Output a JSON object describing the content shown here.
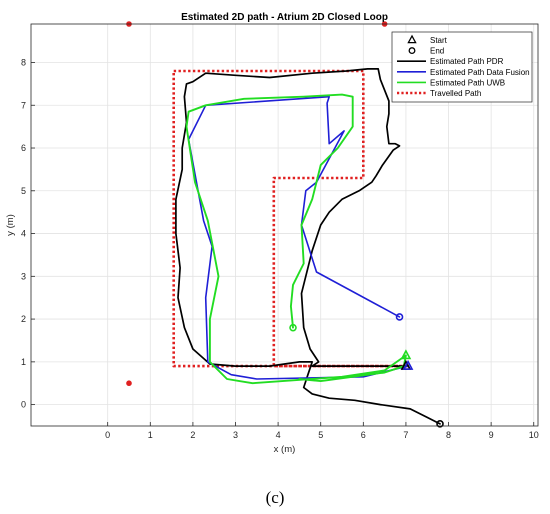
{
  "chart_data": {
    "type": "line",
    "title": "Estimated 2D path - Atrium 2D Closed Loop",
    "xlabel": "x (m)",
    "ylabel": "y (m)",
    "xlim": [
      -1.8,
      10.1
    ],
    "ylim": [
      -0.5,
      8.9
    ],
    "xticks": [
      0,
      1,
      2,
      3,
      4,
      5,
      6,
      7,
      8,
      9,
      10
    ],
    "yticks": [
      0,
      1,
      2,
      3,
      4,
      5,
      6,
      7,
      8
    ],
    "grid": true,
    "legend_position": "top-right",
    "legend": [
      {
        "label": "Start",
        "marker": "triangle",
        "color": "#000000"
      },
      {
        "label": "End",
        "marker": "circle",
        "color": "#000000"
      },
      {
        "label": "Estimated Path PDR",
        "color": "#000000",
        "style": "solid"
      },
      {
        "label": "Estimated Path Data Fusion",
        "color": "#1f1fd6",
        "style": "solid"
      },
      {
        "label": "Estimated Path UWB",
        "color": "#22dd22",
        "style": "solid"
      },
      {
        "label": "Travelled Path",
        "color": "#e02020",
        "style": "dotted"
      }
    ],
    "series": [
      {
        "name": "Travelled Path",
        "color": "#e02020",
        "style": "dotted",
        "x": [
          1.55,
          6.0,
          6.0,
          3.9,
          3.9,
          7.05,
          1.55,
          1.55
        ],
        "y": [
          7.8,
          7.8,
          5.3,
          5.3,
          0.9,
          0.9,
          0.9,
          7.8
        ]
      },
      {
        "name": "Estimated Path PDR",
        "color": "#000000",
        "style": "solid",
        "x": [
          7.8,
          7.5,
          7.1,
          6.4,
          5.8,
          5.2,
          4.8,
          4.6,
          4.7,
          4.8,
          4.5,
          3.8,
          3.0,
          2.4,
          2.0,
          1.8,
          1.65,
          1.7,
          1.6,
          1.6,
          1.75,
          1.75,
          1.85,
          1.8,
          1.85,
          2.0,
          2.3,
          3.0,
          3.8,
          4.8,
          5.6,
          6.1,
          6.35,
          6.4,
          6.6,
          6.6,
          6.55,
          6.6,
          6.75,
          6.85,
          6.7,
          6.45,
          6.3,
          6.2,
          5.9,
          5.5,
          5.2,
          5.0,
          4.8,
          4.55,
          4.6,
          4.75,
          4.95,
          4.8,
          7.0
        ],
        "y": [
          -0.45,
          -0.3,
          -0.1,
          0.0,
          0.1,
          0.15,
          0.25,
          0.4,
          0.7,
          1.0,
          1.0,
          0.9,
          0.9,
          0.95,
          1.3,
          1.8,
          2.5,
          3.2,
          4.0,
          4.8,
          5.5,
          6.0,
          6.6,
          7.2,
          7.5,
          7.55,
          7.75,
          7.7,
          7.65,
          7.75,
          7.8,
          7.85,
          7.85,
          7.6,
          7.1,
          6.8,
          6.5,
          6.1,
          6.1,
          6.05,
          5.95,
          5.6,
          5.35,
          5.2,
          5.0,
          4.8,
          4.5,
          4.2,
          3.6,
          2.6,
          1.8,
          1.3,
          1.0,
          0.9,
          0.9
        ]
      },
      {
        "name": "Estimated Path Data Fusion",
        "color": "#1f1fd6",
        "style": "solid",
        "x": [
          6.85,
          4.9,
          4.55,
          4.65,
          4.9,
          5.55,
          5.2,
          5.15,
          5.2,
          2.3,
          1.9,
          2.25,
          2.45,
          2.3,
          2.35,
          2.9,
          3.5,
          6.0,
          7.05
        ],
        "y": [
          2.05,
          3.1,
          4.2,
          5.0,
          5.2,
          6.4,
          6.1,
          7.05,
          7.2,
          7.0,
          6.2,
          4.3,
          3.7,
          2.5,
          1.0,
          0.7,
          0.6,
          0.65,
          0.9
        ]
      },
      {
        "name": "Estimated Path UWB",
        "color": "#22dd22",
        "style": "solid",
        "x": [
          4.35,
          4.3,
          4.35,
          4.6,
          4.55,
          4.8,
          5.0,
          5.4,
          5.75,
          5.75,
          5.5,
          4.6,
          3.2,
          2.3,
          1.9,
          1.85,
          2.05,
          2.35,
          2.6,
          2.4,
          2.4,
          2.8,
          3.4,
          5.5,
          6.5,
          7.0,
          6.95,
          6.8,
          6.5,
          5.0,
          4.5
        ],
        "y": [
          1.8,
          2.3,
          2.8,
          3.3,
          4.2,
          4.8,
          5.6,
          6.0,
          6.5,
          7.2,
          7.25,
          7.2,
          7.15,
          7.0,
          6.85,
          6.5,
          5.2,
          4.3,
          3.0,
          2.0,
          1.0,
          0.6,
          0.5,
          0.65,
          0.8,
          1.15,
          0.9,
          0.85,
          0.75,
          0.55,
          0.6
        ]
      }
    ],
    "markers": [
      {
        "label": "Start",
        "shape": "triangle",
        "points": [
          {
            "series": "Estimated Path PDR",
            "x": 7.0,
            "y": 0.9
          },
          {
            "series": "Estimated Path Data Fusion",
            "x": 7.05,
            "y": 0.9
          },
          {
            "series": "Estimated Path UWB",
            "x": 7.0,
            "y": 1.15
          }
        ]
      },
      {
        "label": "End",
        "shape": "circle",
        "points": [
          {
            "series": "Estimated Path PDR",
            "x": 7.8,
            "y": -0.45
          },
          {
            "series": "Estimated Path Data Fusion",
            "x": 6.85,
            "y": 2.05
          },
          {
            "series": "Estimated Path UWB",
            "x": 4.35,
            "y": 1.8
          }
        ]
      }
    ],
    "anchors": {
      "color": "#e02020",
      "points": [
        {
          "x": 0.5,
          "y": 8.9
        },
        {
          "x": 6.5,
          "y": 8.9
        },
        {
          "x": 0.5,
          "y": 0.5
        }
      ]
    }
  },
  "caption": "(c)"
}
